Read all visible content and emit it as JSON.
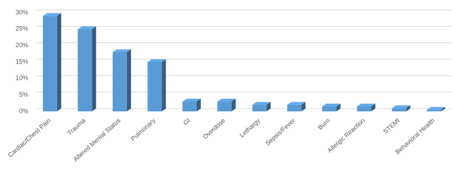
{
  "chart_data": {
    "type": "bar",
    "categories": [
      "Cardiac/Chest Pain",
      "Trauma",
      "Altered Mental Status",
      "Pulmonary",
      "GI",
      "Overdose",
      "Lethargy",
      "Sepsis/Fever",
      "Burn",
      "Allergic Reaction",
      "STEMI",
      "Behavioral Health"
    ],
    "values": [
      29,
      25,
      18,
      15,
      3,
      3,
      2,
      2,
      1.5,
      1.5,
      1,
      0.5
    ],
    "color": "#5b9bd5",
    "ylim": [
      0,
      30
    ],
    "yticks": [
      {
        "value": 0,
        "label": "0%"
      },
      {
        "value": 5,
        "label": "5%"
      },
      {
        "value": 10,
        "label": "10%"
      },
      {
        "value": 15,
        "label": "15%"
      },
      {
        "value": 20,
        "label": "20%"
      },
      {
        "value": 25,
        "label": "25%"
      },
      {
        "value": 30,
        "label": "30%"
      }
    ],
    "grid": true
  }
}
